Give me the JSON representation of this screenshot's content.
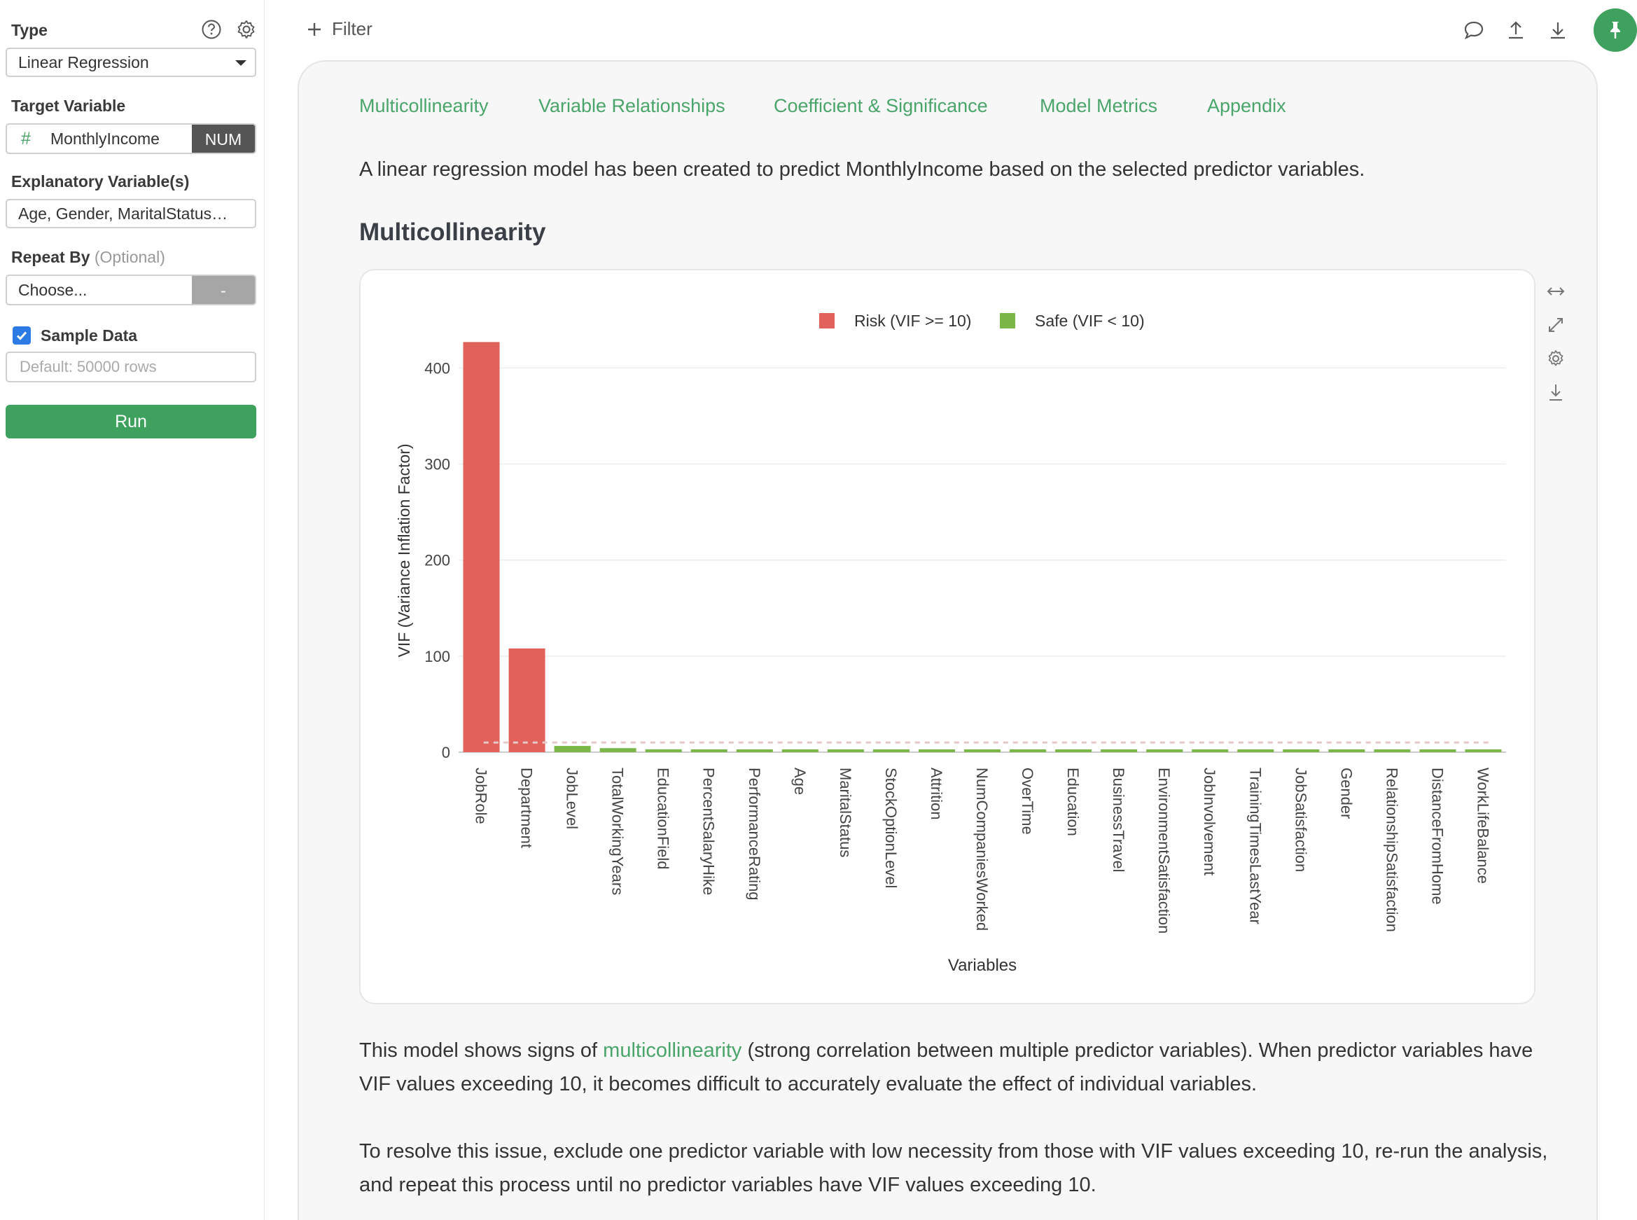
{
  "sidebar": {
    "type_label": "Type",
    "type_value": "Linear Regression",
    "target_label": "Target Variable",
    "target_value": "MonthlyIncome",
    "target_badge": "NUM",
    "explanatory_label": "Explanatory Variable(s)",
    "explanatory_value": "Age, Gender, MaritalStatus…",
    "repeat_label": "Repeat By",
    "repeat_optional": "(Optional)",
    "repeat_placeholder": "Choose...",
    "repeat_side": "-",
    "sample_label": "Sample Data",
    "sample_checked": true,
    "sample_placeholder": "Default: 50000 rows",
    "run_label": "Run"
  },
  "topbar": {
    "filter_label": "Filter"
  },
  "main": {
    "tabs": [
      "Multicollinearity",
      "Variable Relationships",
      "Coefficient & Significance",
      "Model Metrics",
      "Appendix"
    ],
    "intro": "A linear regression model has been created to predict MonthlyIncome based on the selected predictor variables.",
    "section_title": "Multicollinearity",
    "body1_pre": "This model shows signs of ",
    "body1_link": "multicollinearity",
    "body1_post": " (strong correlation between multiple predictor variables). When predictor variables have VIF values exceeding 10, it becomes difficult to accurately evaluate the effect of individual variables.",
    "body2": "To resolve this issue, exclude one predictor variable with low necessity from those with VIF values exceeding 10, re-run the analysis, and repeat this process until no predictor variables have VIF values exceeding 10."
  },
  "colors": {
    "accent": "#4aa56a",
    "risk": "#e0625b",
    "safe": "#7ab648"
  },
  "chart_data": {
    "type": "bar",
    "xlabel": "Variables",
    "ylabel": "VIF (Variance Inflation Factor)",
    "ylim": [
      0,
      420
    ],
    "yticks": [
      0,
      100,
      200,
      300,
      400
    ],
    "threshold": 10,
    "legend": [
      {
        "name": "Risk (VIF >= 10)",
        "color": "#e0625b"
      },
      {
        "name": "Safe (VIF < 10)",
        "color": "#7ab648"
      }
    ],
    "legend_position": "top",
    "grid": true,
    "categories": [
      "JobRole",
      "Department",
      "JobLevel",
      "TotalWorkingYears",
      "EducationField",
      "PercentSalaryHike",
      "PerformanceRating",
      "Age",
      "MaritalStatus",
      "StockOptionLevel",
      "Attrition",
      "NumCompaniesWorked",
      "OverTime",
      "Education",
      "BusinessTravel",
      "EnvironmentSatisfaction",
      "JobInvolvement",
      "TrainingTimesLastYear",
      "JobSatisfaction",
      "Gender",
      "RelationshipSatisfaction",
      "DistanceFromHome",
      "WorkLifeBalance"
    ],
    "values": [
      427,
      108,
      6.5,
      4.2,
      3.0,
      2.6,
      2.6,
      2.1,
      2.0,
      1.9,
      1.8,
      1.6,
      1.5,
      1.4,
      1.3,
      1.2,
      1.2,
      1.1,
      1.1,
      1.1,
      1.0,
      1.0,
      1.0
    ]
  }
}
